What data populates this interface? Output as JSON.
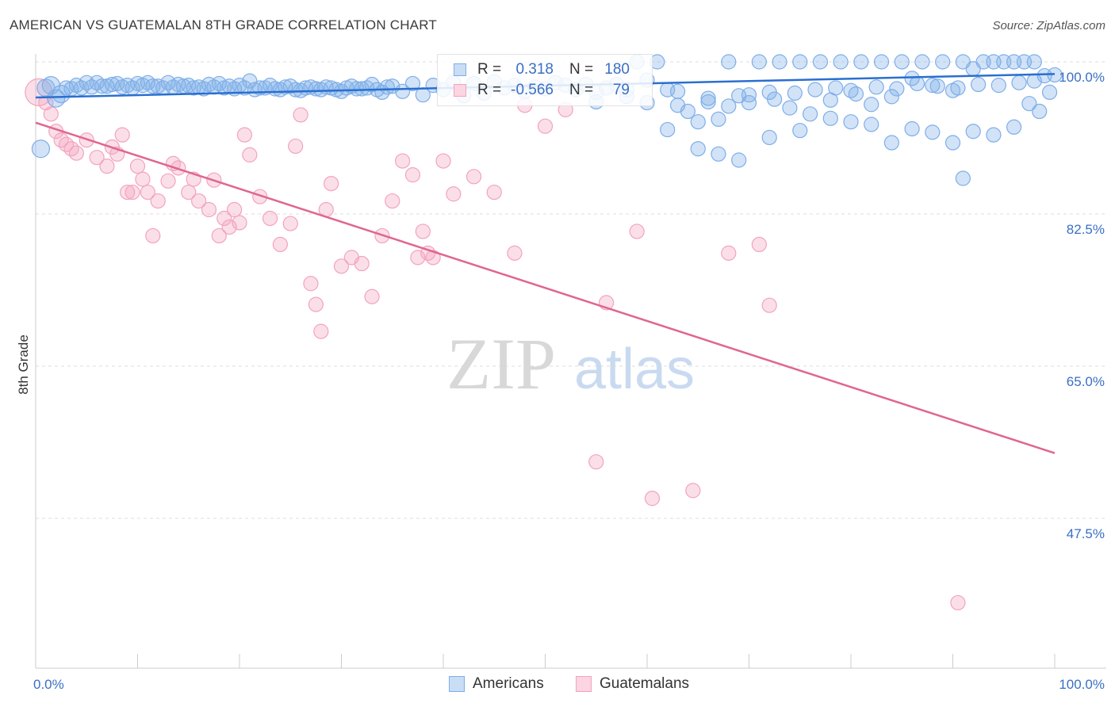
{
  "title": "AMERICAN VS GUATEMALAN 8TH GRADE CORRELATION CHART",
  "source": "Source: ZipAtlas.com",
  "watermark": {
    "zip": "ZIP",
    "atlas": "atlas"
  },
  "colors": {
    "american": "#7eaee8",
    "american_line": "#2a6fd0",
    "guatemalan": "#f3a3bd",
    "guatemalan_line": "#e0668f",
    "axis_label": "#3a6fc4",
    "grid": "#dddddd"
  },
  "legend": {
    "americans": {
      "r_label": "R =",
      "r_value": "0.318",
      "n_label": "N =",
      "n_value": "180"
    },
    "guatemalans": {
      "r_label": "R =",
      "r_value": "-0.566",
      "n_label": "N =",
      "n_value": "79"
    }
  },
  "bottom_legend": {
    "americans": "Americans",
    "guatemalans": "Guatemalans"
  },
  "chart_data": {
    "type": "scatter",
    "xlabel": "",
    "ylabel": "8th Grade",
    "xlim": [
      0,
      100
    ],
    "ylim": [
      32,
      102
    ],
    "x_tick_labels": [
      "0.0%",
      "100.0%"
    ],
    "y_ticks": [
      100.0,
      82.5,
      65.0,
      47.5
    ],
    "y_tick_labels": [
      "100.0%",
      "82.5%",
      "65.0%",
      "47.5%"
    ],
    "grid": true,
    "series": [
      {
        "name": "Americans",
        "trend": {
          "x": [
            0,
            100
          ],
          "y": [
            95.9,
            98.6
          ]
        },
        "points": [
          [
            0.5,
            90
          ],
          [
            2,
            95.8
          ],
          [
            2.5,
            96.3
          ],
          [
            3,
            97
          ],
          [
            4,
            97.3
          ],
          [
            5,
            97.6
          ],
          [
            6,
            97.6
          ],
          [
            7,
            97.2
          ],
          [
            8,
            97.5
          ],
          [
            9,
            97.3
          ],
          [
            10,
            97.5
          ],
          [
            11,
            97.6
          ],
          [
            12,
            97.2
          ],
          [
            13,
            97.6
          ],
          [
            14,
            97.4
          ],
          [
            15,
            97.3
          ],
          [
            16,
            97.1
          ],
          [
            17,
            97.4
          ],
          [
            18,
            97.5
          ],
          [
            19,
            97.2
          ],
          [
            20,
            97.3
          ],
          [
            21,
            97.8
          ],
          [
            22,
            97.0
          ],
          [
            23,
            97.3
          ],
          [
            24,
            96.8
          ],
          [
            25,
            97.2
          ],
          [
            26,
            96.7
          ],
          [
            27,
            97.1
          ],
          [
            28,
            96.8
          ],
          [
            29,
            97.0
          ],
          [
            30,
            96.6
          ],
          [
            31,
            97.2
          ],
          [
            32,
            96.9
          ],
          [
            33,
            97.4
          ],
          [
            34,
            96.5
          ],
          [
            35,
            97.2
          ],
          [
            36,
            96.6
          ],
          [
            37,
            97.5
          ],
          [
            38,
            96.2
          ],
          [
            39,
            97.3
          ],
          [
            40,
            96.8
          ],
          [
            41,
            97.6
          ],
          [
            42,
            96.1
          ],
          [
            43,
            97.5
          ],
          [
            44,
            96.4
          ],
          [
            45,
            97.7
          ],
          [
            46,
            97.0
          ],
          [
            47,
            97.3
          ],
          [
            48,
            96.6
          ],
          [
            49,
            97.1
          ],
          [
            50,
            96.9
          ],
          [
            51,
            97.6
          ],
          [
            52,
            97.3
          ],
          [
            53,
            96.8
          ],
          [
            54,
            97.4
          ],
          [
            55,
            96.5
          ],
          [
            56,
            97.0
          ],
          [
            57,
            97.4
          ],
          [
            58,
            96.8
          ],
          [
            59,
            100
          ],
          [
            60,
            97.9
          ],
          [
            61,
            100
          ],
          [
            62,
            96.8
          ],
          [
            63,
            95.0
          ],
          [
            64,
            94.3
          ],
          [
            65,
            93.1
          ],
          [
            66,
            95.4
          ],
          [
            67,
            93.4
          ],
          [
            68,
            100
          ],
          [
            69,
            96.1
          ],
          [
            70,
            95.3
          ],
          [
            71,
            100
          ],
          [
            72,
            96.5
          ],
          [
            73,
            100
          ],
          [
            74,
            94.7
          ],
          [
            75,
            100
          ],
          [
            76,
            94.0
          ],
          [
            77,
            100
          ],
          [
            78,
            95.6
          ],
          [
            79,
            100
          ],
          [
            80,
            96.7
          ],
          [
            81,
            100
          ],
          [
            82,
            95.1
          ],
          [
            83,
            100
          ],
          [
            84,
            96.0
          ],
          [
            85,
            100
          ],
          [
            86,
            98.1
          ],
          [
            87,
            100
          ],
          [
            88,
            97.3
          ],
          [
            89,
            100
          ],
          [
            90,
            96.7
          ],
          [
            91,
            100
          ],
          [
            92,
            99.2
          ],
          [
            93,
            100
          ],
          [
            94,
            100
          ],
          [
            95,
            100
          ],
          [
            96,
            100
          ],
          [
            97,
            100
          ],
          [
            98,
            100
          ],
          [
            99,
            98.4
          ],
          [
            100,
            98.5
          ],
          [
            62,
            92.2
          ],
          [
            65,
            90.0
          ],
          [
            67,
            89.4
          ],
          [
            69,
            88.7
          ],
          [
            72,
            91.3
          ],
          [
            75,
            92.1
          ],
          [
            78,
            93.5
          ],
          [
            80,
            93.1
          ],
          [
            82,
            92.8
          ],
          [
            84,
            90.7
          ],
          [
            86,
            92.3
          ],
          [
            88,
            91.9
          ],
          [
            90,
            90.7
          ],
          [
            92,
            92.0
          ],
          [
            94,
            91.6
          ],
          [
            96,
            92.5
          ],
          [
            97.5,
            95.2
          ],
          [
            98.5,
            94.3
          ],
          [
            99.5,
            96.5
          ],
          [
            91,
            86.6
          ],
          [
            55,
            95.4
          ],
          [
            58,
            96.0
          ],
          [
            60,
            95.3
          ],
          [
            63,
            96.6
          ],
          [
            66,
            95.8
          ],
          [
            68,
            94.9
          ],
          [
            70,
            96.2
          ],
          [
            72.5,
            95.7
          ],
          [
            74.5,
            96.4
          ],
          [
            76.5,
            96.8
          ],
          [
            78.5,
            97.0
          ],
          [
            80.5,
            96.3
          ],
          [
            82.5,
            97.1
          ],
          [
            84.5,
            96.9
          ],
          [
            86.5,
            97.5
          ],
          [
            88.5,
            97.2
          ],
          [
            90.5,
            97.0
          ],
          [
            92.5,
            97.4
          ],
          [
            94.5,
            97.3
          ],
          [
            96.5,
            97.6
          ],
          [
            98,
            97.8
          ],
          [
            1,
            97.0
          ],
          [
            1.5,
            97.3
          ],
          [
            3.5,
            96.9
          ],
          [
            4.5,
            97.0
          ],
          [
            5.5,
            97.1
          ],
          [
            6.5,
            97.2
          ],
          [
            7.5,
            97.4
          ],
          [
            8.5,
            97.1
          ],
          [
            9.5,
            97.0
          ],
          [
            10.5,
            97.3
          ],
          [
            11.5,
            97.2
          ],
          [
            12.5,
            97.0
          ],
          [
            13.5,
            97.1
          ],
          [
            14.5,
            97.2
          ],
          [
            15.5,
            97.0
          ],
          [
            16.5,
            96.9
          ],
          [
            17.5,
            97.1
          ],
          [
            18.5,
            97.0
          ],
          [
            19.5,
            96.9
          ],
          [
            20.5,
            97.0
          ],
          [
            21.5,
            96.8
          ],
          [
            22.5,
            97.0
          ],
          [
            23.5,
            96.9
          ],
          [
            24.5,
            97.1
          ],
          [
            25.5,
            96.8
          ],
          [
            26.5,
            97.0
          ],
          [
            27.5,
            96.9
          ],
          [
            28.5,
            97.1
          ],
          [
            29.5,
            96.8
          ],
          [
            30.5,
            97.0
          ],
          [
            31.5,
            96.9
          ],
          [
            32.5,
            97.0
          ],
          [
            33.5,
            96.8
          ],
          [
            34.5,
            97.1
          ]
        ]
      },
      {
        "name": "Guatemalans",
        "trend": {
          "x": [
            0,
            100
          ],
          "y": [
            93.0,
            55.0
          ]
        },
        "points": [
          [
            0.3,
            96.5
          ],
          [
            1,
            95.3
          ],
          [
            1.5,
            94
          ],
          [
            2,
            92
          ],
          [
            2.5,
            91
          ],
          [
            3,
            90.5
          ],
          [
            3.5,
            90
          ],
          [
            4,
            89.5
          ],
          [
            5,
            91
          ],
          [
            6,
            89
          ],
          [
            7,
            88
          ],
          [
            7.5,
            90.2
          ],
          [
            8,
            89.4
          ],
          [
            8.5,
            91.6
          ],
          [
            9,
            85
          ],
          [
            9.5,
            85
          ],
          [
            10,
            88
          ],
          [
            10.5,
            86.5
          ],
          [
            11,
            85
          ],
          [
            11.5,
            80
          ],
          [
            12,
            84
          ],
          [
            13,
            86.3
          ],
          [
            13.5,
            88.3
          ],
          [
            14,
            87.8
          ],
          [
            15,
            85
          ],
          [
            15.5,
            86.5
          ],
          [
            16,
            84
          ],
          [
            17,
            83
          ],
          [
            17.5,
            86.4
          ],
          [
            18,
            80
          ],
          [
            18.5,
            82
          ],
          [
            19,
            81
          ],
          [
            19.5,
            83
          ],
          [
            20,
            81.5
          ],
          [
            20.5,
            91.6
          ],
          [
            21,
            89.3
          ],
          [
            22,
            84.5
          ],
          [
            23,
            82
          ],
          [
            24,
            79
          ],
          [
            25,
            81.4
          ],
          [
            25.5,
            90.3
          ],
          [
            26,
            93.9
          ],
          [
            27,
            74.5
          ],
          [
            27.5,
            72.1
          ],
          [
            28,
            69
          ],
          [
            28.5,
            83
          ],
          [
            29,
            86
          ],
          [
            30,
            76.5
          ],
          [
            31,
            77.5
          ],
          [
            32,
            76.8
          ],
          [
            33,
            73
          ],
          [
            34,
            80
          ],
          [
            35,
            84
          ],
          [
            36,
            88.6
          ],
          [
            37,
            87
          ],
          [
            37.5,
            77.5
          ],
          [
            38,
            80.5
          ],
          [
            38.5,
            78
          ],
          [
            39,
            77.5
          ],
          [
            40,
            88.6
          ],
          [
            41,
            84.8
          ],
          [
            43,
            86.8
          ],
          [
            45,
            85.0
          ],
          [
            47,
            78
          ],
          [
            48,
            95.0
          ],
          [
            50,
            92.6
          ],
          [
            52,
            94.5
          ],
          [
            55,
            54.0
          ],
          [
            56,
            72.3
          ],
          [
            59,
            80.5
          ],
          [
            60.5,
            49.8
          ],
          [
            64.5,
            50.7
          ],
          [
            68,
            78
          ],
          [
            71,
            79
          ],
          [
            72,
            72
          ],
          [
            90.5,
            37.8
          ]
        ]
      }
    ]
  }
}
